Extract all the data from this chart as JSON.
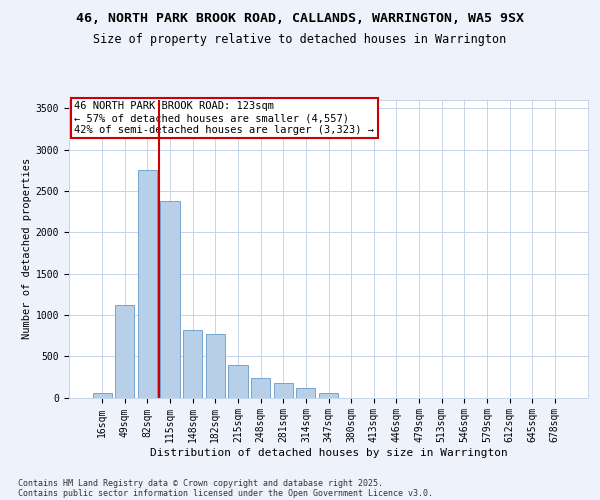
{
  "title1": "46, NORTH PARK BROOK ROAD, CALLANDS, WARRINGTON, WA5 9SX",
  "title2": "Size of property relative to detached houses in Warrington",
  "xlabel": "Distribution of detached houses by size in Warrington",
  "ylabel": "Number of detached properties",
  "categories": [
    "16sqm",
    "49sqm",
    "82sqm",
    "115sqm",
    "148sqm",
    "182sqm",
    "215sqm",
    "248sqm",
    "281sqm",
    "314sqm",
    "347sqm",
    "380sqm",
    "413sqm",
    "446sqm",
    "479sqm",
    "513sqm",
    "546sqm",
    "579sqm",
    "612sqm",
    "645sqm",
    "678sqm"
  ],
  "values": [
    55,
    1120,
    2750,
    2380,
    820,
    770,
    390,
    230,
    175,
    120,
    50,
    0,
    0,
    0,
    0,
    0,
    0,
    0,
    0,
    0,
    0
  ],
  "bar_color": "#b8cfe8",
  "bar_edge_color": "#6699cc",
  "vline_color": "#cc0000",
  "annotation_title": "46 NORTH PARK BROOK ROAD: 123sqm",
  "annotation_line1": "← 57% of detached houses are smaller (4,557)",
  "annotation_line2": "42% of semi-detached houses are larger (3,323) →",
  "annotation_box_facecolor": "#ffffff",
  "annotation_box_edgecolor": "#cc0000",
  "ylim": [
    0,
    3600
  ],
  "yticks": [
    0,
    500,
    1000,
    1500,
    2000,
    2500,
    3000,
    3500
  ],
  "footer1": "Contains HM Land Registry data © Crown copyright and database right 2025.",
  "footer2": "Contains public sector information licensed under the Open Government Licence v3.0.",
  "bg_color": "#eef2fb",
  "plot_bg_color": "#ffffff",
  "grid_color": "#c5d5e8",
  "title1_fontsize": 9.5,
  "title2_fontsize": 8.5,
  "ylabel_fontsize": 7.5,
  "xlabel_fontsize": 8,
  "tick_fontsize": 7,
  "footer_fontsize": 6,
  "annot_fontsize": 7.5
}
